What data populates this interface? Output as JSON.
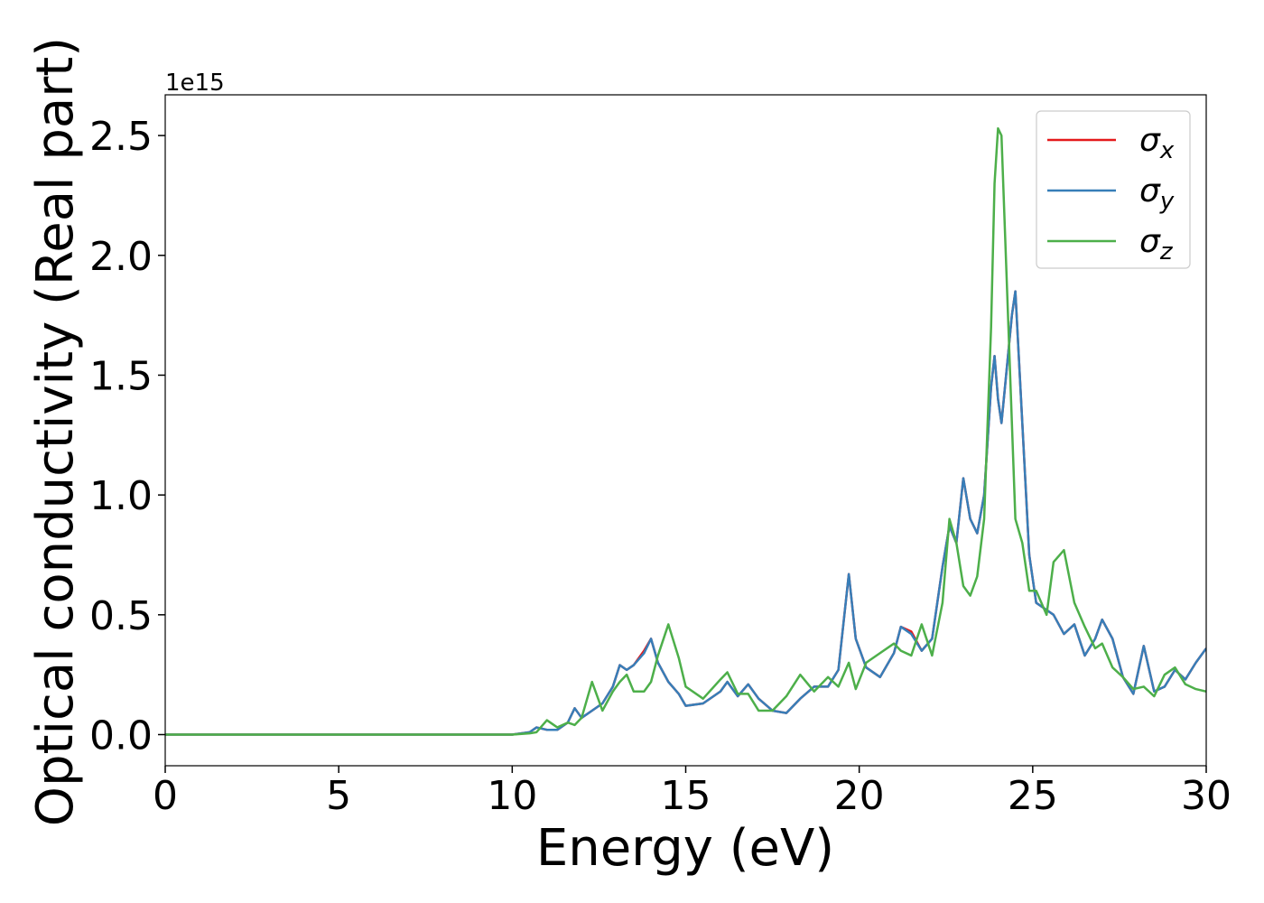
{
  "chart_data": {
    "type": "line",
    "xlabel": "Energy (eV)",
    "ylabel": "Optical conductivity (Real part)",
    "y_offset_label": "1e15",
    "xlim": [
      0,
      30
    ],
    "xticks": [
      0,
      5,
      10,
      15,
      20,
      25,
      30
    ],
    "ylim": [
      -0.13,
      2.67
    ],
    "yticks": [
      {
        "value": 0,
        "label": "0.0"
      },
      0.5,
      {
        "value": 1,
        "label": "1.0"
      },
      1.5,
      {
        "value": 2,
        "label": "2.0"
      },
      2.5
    ],
    "legend": "upper right",
    "x": [
      0,
      5,
      10,
      10.5,
      10.7,
      11,
      11.3,
      11.6,
      11.8,
      12.0,
      12.3,
      12.6,
      12.9,
      13.1,
      13.3,
      13.5,
      13.8,
      14.0,
      14.2,
      14.5,
      14.8,
      15.0,
      15.5,
      16.0,
      16.2,
      16.5,
      16.8,
      17.1,
      17.5,
      17.9,
      18.3,
      18.7,
      19.1,
      19.4,
      19.7,
      19.9,
      20.2,
      20.6,
      21.0,
      21.2,
      21.5,
      21.8,
      22.1,
      22.4,
      22.6,
      22.8,
      23.0,
      23.2,
      23.4,
      23.6,
      23.8,
      23.9,
      24.0,
      24.1,
      24.2,
      24.4,
      24.5,
      24.7,
      24.9,
      25.1,
      25.4,
      25.6,
      25.9,
      26.2,
      26.5,
      26.8,
      27.0,
      27.3,
      27.6,
      27.9,
      28.2,
      28.5,
      28.8,
      29.1,
      29.4,
      29.7,
      30.0
    ],
    "series": [
      {
        "name": "σx",
        "color": "#e41a1c",
        "values": [
          0,
          0,
          0,
          0.01,
          0.03,
          0.02,
          0.02,
          0.05,
          0.11,
          0.07,
          0.1,
          0.13,
          0.2,
          0.29,
          0.27,
          0.29,
          0.35,
          0.4,
          0.3,
          0.22,
          0.17,
          0.12,
          0.13,
          0.18,
          0.22,
          0.16,
          0.21,
          0.15,
          0.1,
          0.09,
          0.15,
          0.2,
          0.2,
          0.27,
          0.67,
          0.4,
          0.28,
          0.24,
          0.34,
          0.45,
          0.43,
          0.35,
          0.4,
          0.7,
          0.87,
          0.8,
          1.07,
          0.9,
          0.84,
          1.0,
          1.45,
          1.58,
          1.4,
          1.3,
          1.45,
          1.75,
          1.85,
          1.3,
          0.75,
          0.55,
          0.52,
          0.5,
          0.42,
          0.46,
          0.33,
          0.4,
          0.48,
          0.4,
          0.24,
          0.17,
          0.37,
          0.18,
          0.2,
          0.27,
          0.23,
          0.3,
          0.36
        ]
      },
      {
        "name": "σy",
        "color": "#377eb8",
        "values": [
          0,
          0,
          0,
          0.01,
          0.03,
          0.02,
          0.02,
          0.05,
          0.11,
          0.07,
          0.1,
          0.13,
          0.2,
          0.29,
          0.27,
          0.29,
          0.34,
          0.4,
          0.3,
          0.22,
          0.17,
          0.12,
          0.13,
          0.18,
          0.22,
          0.16,
          0.21,
          0.15,
          0.1,
          0.09,
          0.15,
          0.2,
          0.2,
          0.27,
          0.67,
          0.4,
          0.28,
          0.24,
          0.34,
          0.45,
          0.42,
          0.35,
          0.4,
          0.7,
          0.87,
          0.8,
          1.07,
          0.9,
          0.84,
          1.0,
          1.45,
          1.58,
          1.4,
          1.3,
          1.45,
          1.75,
          1.85,
          1.3,
          0.75,
          0.55,
          0.52,
          0.5,
          0.42,
          0.46,
          0.33,
          0.4,
          0.48,
          0.4,
          0.24,
          0.17,
          0.37,
          0.18,
          0.2,
          0.27,
          0.23,
          0.3,
          0.36
        ]
      },
      {
        "name": "σz",
        "color": "#4daf4a",
        "values": [
          0,
          0,
          0,
          0.005,
          0.01,
          0.06,
          0.03,
          0.05,
          0.04,
          0.07,
          0.22,
          0.1,
          0.18,
          0.22,
          0.25,
          0.18,
          0.18,
          0.22,
          0.33,
          0.46,
          0.32,
          0.2,
          0.15,
          0.23,
          0.26,
          0.17,
          0.17,
          0.1,
          0.1,
          0.16,
          0.25,
          0.18,
          0.24,
          0.2,
          0.3,
          0.19,
          0.3,
          0.34,
          0.38,
          0.35,
          0.33,
          0.46,
          0.33,
          0.55,
          0.9,
          0.8,
          0.62,
          0.58,
          0.66,
          0.9,
          1.7,
          2.3,
          2.53,
          2.5,
          2.1,
          1.3,
          0.9,
          0.8,
          0.6,
          0.6,
          0.5,
          0.72,
          0.77,
          0.55,
          0.45,
          0.36,
          0.38,
          0.28,
          0.24,
          0.19,
          0.2,
          0.16,
          0.25,
          0.28,
          0.21,
          0.19,
          0.18
        ]
      }
    ]
  }
}
